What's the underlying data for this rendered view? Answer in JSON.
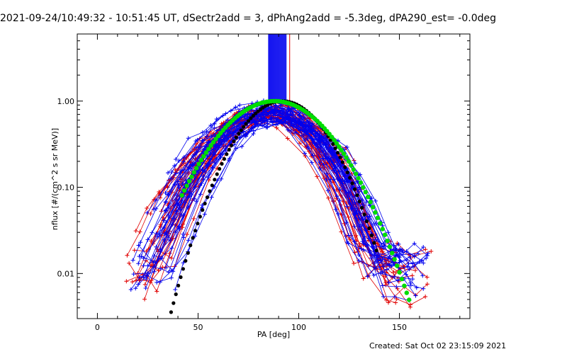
{
  "chart_data": {
    "type": "scatter",
    "title": "2021-09-24/10:49:32 - 10:51:45 UT, dSectr2add = 3, dPhAng2add = -5.3deg, dPA290_est= -0.0deg",
    "xlabel": "PA [deg]",
    "ylabel": "nflux [#/(cm^2 s sr MeV)]",
    "xlim": [
      -10,
      185
    ],
    "ylim": [
      0.003,
      6.0
    ],
    "yscale": "log",
    "xticks": [
      "0",
      "50",
      "100",
      "150"
    ],
    "xtick_values": [
      0,
      50,
      100,
      150
    ],
    "yticks": [
      "0.01",
      "0.10",
      "1.00"
    ],
    "ytick_values": [
      0.01,
      0.1,
      1.0
    ],
    "footer": "Created: Sat Oct 02 23:15:09 2021",
    "series_colors": {
      "red": "#e00000",
      "blue": "#0000ee",
      "black_fit": "#000000",
      "green_fit": "#00dd00"
    },
    "vertical_band": {
      "x_from": 85,
      "x_to": 94,
      "y_from": 1.0,
      "y_to": 6.0,
      "color": "#0000ee"
    },
    "fits": [
      {
        "color": "#000000",
        "peak_x": 92,
        "peak_y": 1.0,
        "width": 16.5,
        "x_range": [
          33,
          139
        ]
      },
      {
        "color": "#00dd00",
        "peak_x": 88,
        "peak_y": 1.0,
        "width": 20.5,
        "x_range": [
          42,
          155
        ]
      }
    ],
    "ensemble": {
      "red_curves": 34,
      "blue_curves": 38,
      "peak_x_range": [
        80,
        92
      ],
      "peak_y_range": [
        0.55,
        0.95
      ],
      "x_start_range": [
        15,
        42
      ],
      "x_end_range": [
        125,
        165
      ],
      "tail_floor_left": [
        0.004,
        0.016
      ],
      "tail_floor_right": [
        0.004,
        0.02
      ]
    }
  }
}
